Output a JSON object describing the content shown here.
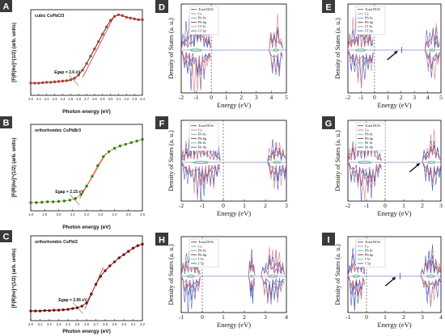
{
  "chart_data": [
    {
      "panel": "A",
      "type": "scatter",
      "title": "cubic CsPbCl3",
      "xlabel": "Photon energy (eV)",
      "ylabel": "[F(R)hν]^(1/2) (arb. units)",
      "xlim": [
        2.0,
        3.4
      ],
      "xticks": [
        "2.0",
        "2.1",
        "2.2",
        "2.3",
        "2.4",
        "2.5",
        "2.6",
        "2.7",
        "2.8",
        "2.9",
        "3.0",
        "3.1",
        "3.2",
        "3.3",
        "3.4"
      ],
      "annotation": "Egap = 2.6 eV",
      "annotation_x": 2.6,
      "marker_color": "#c0392b",
      "line_color": "#1a1a1a",
      "x": [
        2.0,
        2.05,
        2.1,
        2.15,
        2.2,
        2.25,
        2.3,
        2.35,
        2.4,
        2.45,
        2.5,
        2.55,
        2.6,
        2.65,
        2.7,
        2.75,
        2.8,
        2.85,
        2.9,
        2.95,
        3.0,
        3.05,
        3.1,
        3.15,
        3.2,
        3.25,
        3.3,
        3.35,
        3.4
      ],
      "y": [
        0.15,
        0.15,
        0.15,
        0.155,
        0.16,
        0.16,
        0.165,
        0.17,
        0.175,
        0.18,
        0.19,
        0.21,
        0.25,
        0.31,
        0.39,
        0.48,
        0.57,
        0.66,
        0.75,
        0.84,
        0.92,
        0.97,
        0.99,
        0.98,
        0.96,
        0.95,
        0.94,
        0.93,
        0.93
      ],
      "fit_line": [
        [
          2.65,
          0.22
        ],
        [
          3.05,
          0.98
        ]
      ]
    },
    {
      "panel": "B",
      "type": "scatter",
      "title": "orthorhombic CsPbBr3",
      "xlabel": "Photon energy (eV)",
      "ylabel": "[F(R)hν]^(1/2) (arb. units)",
      "xlim": [
        1.8,
        2.6
      ],
      "xticks": [
        "1.8",
        "1.9",
        "2.0",
        "2.1",
        "2.2",
        "2.3",
        "2.4",
        "2.5",
        "2.6"
      ],
      "annotation": "Egap = 2.15 eV",
      "annotation_x": 2.15,
      "marker_color": "#1e8a1e",
      "line_color": "#e67e22",
      "x": [
        1.8,
        1.84,
        1.88,
        1.92,
        1.96,
        2.0,
        2.04,
        2.08,
        2.12,
        2.16,
        2.2,
        2.24,
        2.28,
        2.32,
        2.36,
        2.4,
        2.44,
        2.48,
        2.52,
        2.56,
        2.6
      ],
      "y": [
        0.1,
        0.1,
        0.105,
        0.11,
        0.11,
        0.115,
        0.12,
        0.13,
        0.15,
        0.2,
        0.3,
        0.42,
        0.55,
        0.66,
        0.72,
        0.76,
        0.79,
        0.81,
        0.83,
        0.85,
        0.87
      ],
      "fit_line": [
        [
          2.15,
          0.15
        ],
        [
          2.34,
          0.7
        ]
      ]
    },
    {
      "panel": "C",
      "type": "scatter",
      "title": "orthorhombic CsPbI3",
      "xlabel": "Photon energy (eV)",
      "ylabel": "[F(R)hν]^(1/2) (arb. units)",
      "xlim": [
        2.0,
        3.2
      ],
      "xticks": [
        "2.0",
        "2.1",
        "2.2",
        "2.3",
        "2.4",
        "2.5",
        "2.6",
        "2.7",
        "2.8",
        "2.9",
        "3.0",
        "3.1",
        "3.2"
      ],
      "annotation": "Egap = 2.56 eV",
      "annotation_x": 2.56,
      "marker_color": "#8b0000",
      "line_color": "#1a1a1a",
      "x": [
        2.0,
        2.05,
        2.1,
        2.15,
        2.2,
        2.25,
        2.3,
        2.35,
        2.4,
        2.45,
        2.5,
        2.55,
        2.6,
        2.65,
        2.7,
        2.75,
        2.8,
        2.85,
        2.9,
        2.95,
        3.0,
        3.05,
        3.1,
        3.15,
        3.2
      ],
      "y": [
        0.12,
        0.12,
        0.12,
        0.125,
        0.125,
        0.13,
        0.13,
        0.135,
        0.14,
        0.15,
        0.16,
        0.18,
        0.22,
        0.33,
        0.45,
        0.55,
        0.62,
        0.68,
        0.73,
        0.78,
        0.82,
        0.86,
        0.9,
        0.93,
        0.95
      ],
      "fit_line": [
        [
          2.58,
          0.14
        ],
        [
          2.78,
          0.66
        ]
      ]
    },
    {
      "panel": "D",
      "type": "line",
      "xlabel": "Energy (eV)",
      "ylabel": "Density of States (a. u.)",
      "xlim": [
        -2,
        5
      ],
      "xticks": [
        "-2",
        "-1",
        "0",
        "1",
        "2",
        "3",
        "4",
        "5"
      ],
      "fermi": 0,
      "legend": [
        "Total DOS",
        "Cs",
        "Pb 6s",
        "Pb 6p",
        "Cl 3s",
        "Cl 3p"
      ],
      "bands": [
        [
          -2.0,
          -0.05
        ],
        [
          3.85,
          4.75
        ]
      ],
      "arrow_x": null
    },
    {
      "panel": "E",
      "type": "line",
      "xlabel": "Energy (eV)",
      "ylabel": "Density of States (a. u.)",
      "xlim": [
        -2,
        5
      ],
      "xticks": [
        "-2",
        "-1",
        "0",
        "1",
        "2",
        "3",
        "4",
        "5"
      ],
      "fermi": 0,
      "legend": [
        "Total DOS",
        "Cs",
        "Pb 6s",
        "Pb 6p",
        "Cl 3s",
        "Cl 3p"
      ],
      "bands": [
        [
          -2.0,
          -0.1
        ],
        [
          3.8,
          4.9
        ]
      ],
      "arrow_x": 2.0,
      "defect_x": 2.05
    },
    {
      "panel": "F",
      "type": "line",
      "xlabel": "Energy (eV)",
      "ylabel": "Density of States (a. u.)",
      "xlim": [
        -2,
        3
      ],
      "xticks": [
        "-2",
        "-1",
        "0",
        "1",
        "2",
        "3"
      ],
      "fermi": 0,
      "legend": [
        "Total DOS",
        "Cs",
        "Pb 6s",
        "Pb 6p",
        "Br 4s",
        "Br 4p"
      ],
      "bands": [
        [
          -2.0,
          -0.15
        ],
        [
          2.1,
          3.0
        ]
      ],
      "arrow_x": null
    },
    {
      "panel": "G",
      "type": "line",
      "xlabel": "Energy (eV)",
      "ylabel": "Density of States (a. u.)",
      "xlim": [
        -2,
        3
      ],
      "xticks": [
        "-2",
        "-1",
        "0",
        "1",
        "2",
        "3"
      ],
      "fermi": 0,
      "legend": [
        "Total DOS",
        "Cs",
        "Pb 6s",
        "Pb 6p",
        "Br 4s",
        "Br 4p"
      ],
      "bands": [
        [
          -2.0,
          -0.2
        ],
        [
          2.0,
          3.0
        ]
      ],
      "arrow_x": 2.05
    },
    {
      "panel": "H",
      "type": "line",
      "xlabel": "Energy (eV)",
      "ylabel": "Density of States (a. u.)",
      "xlim": [
        -1,
        4
      ],
      "xticks": [
        "-1",
        "0",
        "1",
        "2",
        "3",
        "4"
      ],
      "fermi": 0,
      "legend": [
        "Total DOS",
        "Cs",
        "Pb 6s",
        "Pb 6p",
        "I 5s",
        "I 5p"
      ],
      "bands": [
        [
          -1.0,
          -0.1
        ],
        [
          2.2,
          2.5
        ],
        [
          2.8,
          3.9
        ]
      ],
      "arrow_x": null
    },
    {
      "panel": "I",
      "type": "line",
      "xlabel": "Energy (eV)",
      "ylabel": "Density of States (a. u.)",
      "xlim": [
        -1,
        4
      ],
      "xticks": [
        "-1",
        "0",
        "1",
        "2",
        "3",
        "4"
      ],
      "fermi": 0,
      "legend": [
        "Total DOS",
        "Cs",
        "Pb 6s",
        "Pb 6p",
        "I 5s",
        "I 5p"
      ],
      "bands": [
        [
          -1.0,
          -0.1
        ],
        [
          2.9,
          4.0
        ]
      ],
      "arrow_x": 1.75,
      "defect_x": 1.8
    }
  ],
  "legend_colors": [
    "#4a4ab8",
    "#d97878",
    "#5aa0d8",
    "#9a3050",
    "#5ec080",
    "#3b6ec8"
  ]
}
